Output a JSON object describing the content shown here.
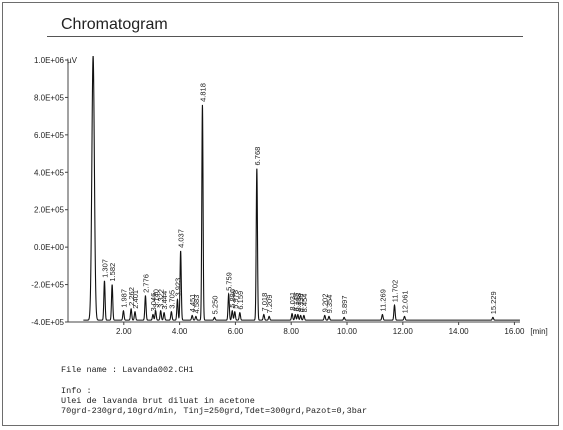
{
  "title": "Chromatogram",
  "file_line": "File name : Lavanda002.CH1",
  "info_label": "Info :",
  "info_line1": "Ulei de lavanda brut diluat in acetone",
  "info_line2": "70grd-230grd,10grd/min, Tinj=250grd,Tdet=300grd,Pazot=0,3bar",
  "chart_data": {
    "type": "line",
    "title": "Chromatogram",
    "xlabel": "",
    "ylabel": "",
    "x_unit_label": "[min]",
    "y_unit_label": "µV",
    "xlim": [
      0.0,
      16.2
    ],
    "ylim": [
      -400000,
      1000000
    ],
    "x_ticks": [
      2.0,
      4.0,
      6.0,
      8.0,
      10.0,
      12.0,
      14.0,
      16.0
    ],
    "x_tick_labels": [
      "2.00",
      "4.00",
      "6.00",
      "8.00",
      "10.00",
      "12.00",
      "14.00",
      "16.00"
    ],
    "y_ticks": [
      1000000,
      800000,
      600000,
      400000,
      200000,
      0,
      -200000,
      -400000
    ],
    "y_tick_labels": [
      "1.0E+06",
      "8.0E+05",
      "6.0E+05",
      "4.0E+05",
      "2.0E+05",
      "0.0E+00",
      "-2.0E+05",
      "-4.0E+05"
    ],
    "baseline": -390000,
    "solvent_peak": {
      "x": 0.9,
      "y": 1020000
    },
    "peaks": [
      {
        "rt": 1.307,
        "label": "1.307",
        "height": -180000
      },
      {
        "rt": 1.582,
        "label": "1.582",
        "height": -200000
      },
      {
        "rt": 1.987,
        "label": "1.987",
        "height": -340000
      },
      {
        "rt": 2.262,
        "label": "2.262",
        "height": -330000
      },
      {
        "rt": 2.401,
        "label": "2.401",
        "height": -345000
      },
      {
        "rt": 2.776,
        "label": "2.776",
        "height": -260000
      },
      {
        "rt": 3.046,
        "label": "3.046",
        "height": -360000
      },
      {
        "rt": 3.14,
        "label": "3.140",
        "height": -340000
      },
      {
        "rt": 3.322,
        "label": "3.322",
        "height": -340000
      },
      {
        "rt": 3.444,
        "label": "3.444",
        "height": -350000
      },
      {
        "rt": 3.705,
        "label": "3.705",
        "height": -345000
      },
      {
        "rt": 3.923,
        "label": "3.923",
        "height": -280000
      },
      {
        "rt": 4.037,
        "label": "4.037",
        "height": -20000
      },
      {
        "rt": 4.451,
        "label": "4.451",
        "height": -365000
      },
      {
        "rt": 4.583,
        "label": "4.583",
        "height": -370000
      },
      {
        "rt": 4.818,
        "label": "4.818",
        "height": 760000
      },
      {
        "rt": 5.25,
        "label": "5.250",
        "height": -375000
      },
      {
        "rt": 5.759,
        "label": "5.759",
        "height": -250000
      },
      {
        "rt": 5.886,
        "label": "5.886",
        "height": -340000
      },
      {
        "rt": 5.978,
        "label": "5.978",
        "height": -345000
      },
      {
        "rt": 6.159,
        "label": "6.159",
        "height": -350000
      },
      {
        "rt": 6.768,
        "label": "6.768",
        "height": 420000
      },
      {
        "rt": 7.018,
        "label": "7.018",
        "height": -360000
      },
      {
        "rt": 7.209,
        "label": "7.209",
        "height": -370000
      },
      {
        "rt": 8.031,
        "label": "8.031",
        "height": -355000
      },
      {
        "rt": 8.145,
        "label": "8.145",
        "height": -360000
      },
      {
        "rt": 8.238,
        "label": "8.238",
        "height": -360000
      },
      {
        "rt": 8.338,
        "label": "8.338",
        "height": -365000
      },
      {
        "rt": 8.454,
        "label": "8.454",
        "height": -365000
      },
      {
        "rt": 9.202,
        "label": "9.202",
        "height": -365000
      },
      {
        "rt": 9.354,
        "label": "9.354",
        "height": -370000
      },
      {
        "rt": 9.897,
        "label": "9.897",
        "height": -375000
      },
      {
        "rt": 11.269,
        "label": "11.269",
        "height": -360000
      },
      {
        "rt": 11.702,
        "label": "11.702",
        "height": -310000
      },
      {
        "rt": 12.061,
        "label": "12.061",
        "height": -370000
      },
      {
        "rt": 15.229,
        "label": "15.229",
        "height": -375000
      }
    ]
  }
}
